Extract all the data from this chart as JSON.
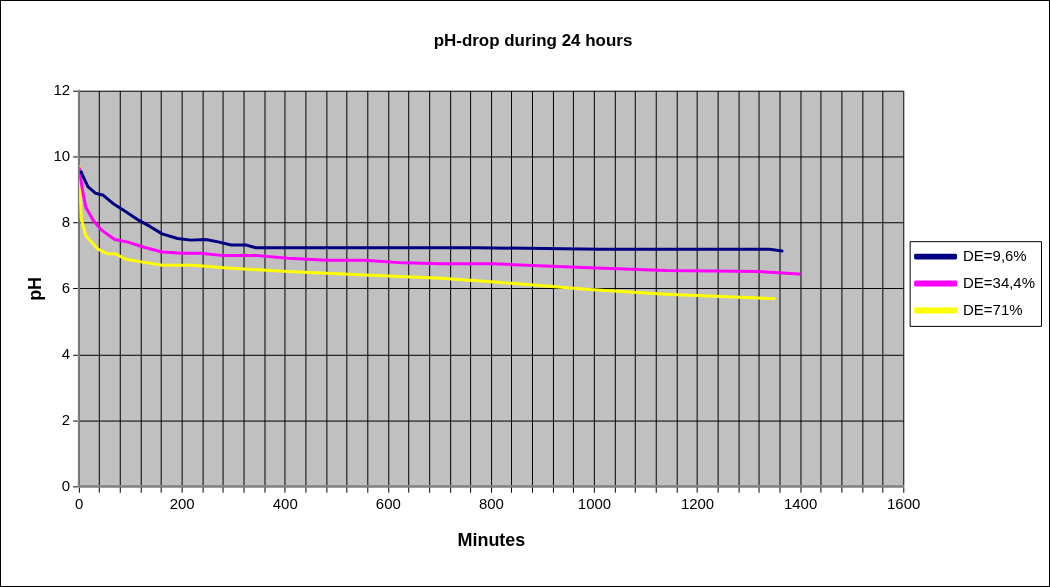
{
  "chart_data": {
    "type": "line",
    "title": "pH-drop during 24 hours",
    "xlabel": "Minutes",
    "ylabel": "pH",
    "xlim": [
      0,
      1600
    ],
    "ylim": [
      0,
      12
    ],
    "yticks": [
      0,
      2,
      4,
      6,
      8,
      10,
      12
    ],
    "xticks": [
      0,
      {
        "value": 40,
        "label": null
      },
      {
        "value": 80,
        "label": null
      },
      {
        "value": 120,
        "label": null
      },
      {
        "value": 160,
        "label": null
      },
      200,
      {
        "value": 240,
        "label": null
      },
      {
        "value": 280,
        "label": null
      },
      {
        "value": 320,
        "label": null
      },
      {
        "value": 360,
        "label": null
      },
      400,
      {
        "value": 440,
        "label": null
      },
      {
        "value": 480,
        "label": null
      },
      {
        "value": 520,
        "label": null
      },
      {
        "value": 560,
        "label": null
      },
      600,
      {
        "value": 640,
        "label": null
      },
      {
        "value": 680,
        "label": null
      },
      {
        "value": 720,
        "label": null
      },
      {
        "value": 760,
        "label": null
      },
      800,
      {
        "value": 840,
        "label": null
      },
      {
        "value": 880,
        "label": null
      },
      {
        "value": 920,
        "label": null
      },
      {
        "value": 960,
        "label": null
      },
      1000,
      {
        "value": 1040,
        "label": null
      },
      {
        "value": 1080,
        "label": null
      },
      {
        "value": 1120,
        "label": null
      },
      {
        "value": 1160,
        "label": null
      },
      1200,
      {
        "value": 1240,
        "label": null
      },
      {
        "value": 1280,
        "label": null
      },
      {
        "value": 1320,
        "label": null
      },
      {
        "value": 1360,
        "label": null
      },
      1400,
      {
        "value": 1440,
        "label": null
      },
      {
        "value": 1480,
        "label": null
      },
      {
        "value": 1520,
        "label": null
      },
      {
        "value": 1560,
        "label": null
      },
      1600
    ],
    "grid": true,
    "legend": "right",
    "marker": "none",
    "line_style": "solid",
    "series": [
      {
        "name": "DE=9,6%",
        "color": "#000080",
        "x": [
          4,
          6,
          17,
          32,
          47,
          65,
          87,
          117,
          139,
          161,
          191,
          217,
          246,
          272,
          295,
          324,
          343,
          500,
          772,
          1012,
          1340,
          1364
        ],
        "values": [
          9.55,
          9.47,
          9.1,
          8.9,
          8.84,
          8.6,
          8.38,
          8.07,
          7.88,
          7.67,
          7.53,
          7.48,
          7.5,
          7.42,
          7.33,
          7.33,
          7.25,
          7.25,
          7.25,
          7.2,
          7.2,
          7.15
        ]
      },
      {
        "name": "DE=34,4%",
        "color": "#ff00ff",
        "x": [
          0,
          6,
          13,
          28,
          43,
          69,
          95,
          124,
          161,
          199,
          236,
          280,
          347,
          406,
          480,
          554,
          628,
          702,
          806,
          990,
          1138,
          1316,
          1397
        ],
        "values": [
          9.67,
          9.04,
          8.47,
          8.07,
          7.79,
          7.5,
          7.42,
          7.27,
          7.12,
          7.08,
          7.08,
          7.01,
          7.01,
          6.93,
          6.87,
          6.87,
          6.79,
          6.76,
          6.76,
          6.64,
          6.56,
          6.53,
          6.45
        ]
      },
      {
        "name": "DE=71%",
        "color": "#ffff00",
        "x": [
          0,
          4,
          13,
          36,
          54,
          69,
          91,
          121,
          161,
          221,
          280,
          406,
          554,
          702,
          806,
          990,
          1138,
          1349
        ],
        "values": [
          9.7,
          8.13,
          7.61,
          7.21,
          7.07,
          7.07,
          6.9,
          6.82,
          6.72,
          6.72,
          6.64,
          6.53,
          6.42,
          6.32,
          6.21,
          5.98,
          5.84,
          5.7
        ]
      }
    ]
  }
}
